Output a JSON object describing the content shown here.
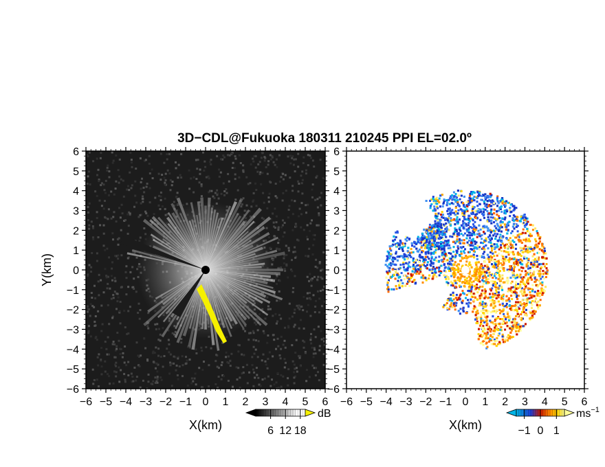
{
  "title": "3D−CDL@Fukuoka 180311 210245 PPI EL=02.0º",
  "chart_data": [
    {
      "type": "heatmap",
      "name": "backscatter-intensity",
      "xlabel": "X(km)",
      "ylabel": "Y(km)",
      "xlim": [
        -6,
        6
      ],
      "ylim": [
        -6,
        6
      ],
      "xticks": [
        "−6",
        "−5",
        "−4",
        "−3",
        "−2",
        "−1",
        "0",
        "1",
        "2",
        "3",
        "4",
        "5",
        "6"
      ],
      "yticks": [
        "6",
        "5",
        "4",
        "3",
        "2",
        "1",
        "0",
        "−1",
        "−2",
        "−3",
        "−4",
        "−5",
        "−6"
      ],
      "background": "#1a1a1a",
      "highlight_color": "#f5f000",
      "colorbar": {
        "unit": "dB",
        "tick_values": [
          6,
          12,
          18
        ],
        "tick_labels": [
          "6",
          "12",
          "18"
        ],
        "range": [
          0,
          20
        ],
        "colors": [
          "#000000",
          "#ffffff",
          "#f5f000"
        ]
      }
    },
    {
      "type": "heatmap",
      "name": "doppler-velocity",
      "xlabel": "X(km)",
      "xlim": [
        -6,
        6
      ],
      "ylim": [
        -6,
        6
      ],
      "xticks": [
        "−6",
        "−5",
        "−4",
        "−3",
        "−2",
        "−1",
        "0",
        "1",
        "2",
        "3",
        "4",
        "5",
        "6"
      ],
      "yticks": [
        "6",
        "5",
        "4",
        "3",
        "2",
        "1",
        "0",
        "−1",
        "−2",
        "−3",
        "−4",
        "−5",
        "−6"
      ],
      "colorbar": {
        "unit": "ms",
        "unit_exponent": "−1",
        "tick_values": [
          -1,
          0,
          1
        ],
        "tick_labels": [
          "−1",
          "0",
          "1"
        ],
        "range": [
          -1.5,
          1.5
        ],
        "colors": [
          "#00b4e6",
          "#1f3dd6",
          "#cc1a00",
          "#ff8c00",
          "#ffd400",
          "#ffff99"
        ]
      }
    }
  ]
}
